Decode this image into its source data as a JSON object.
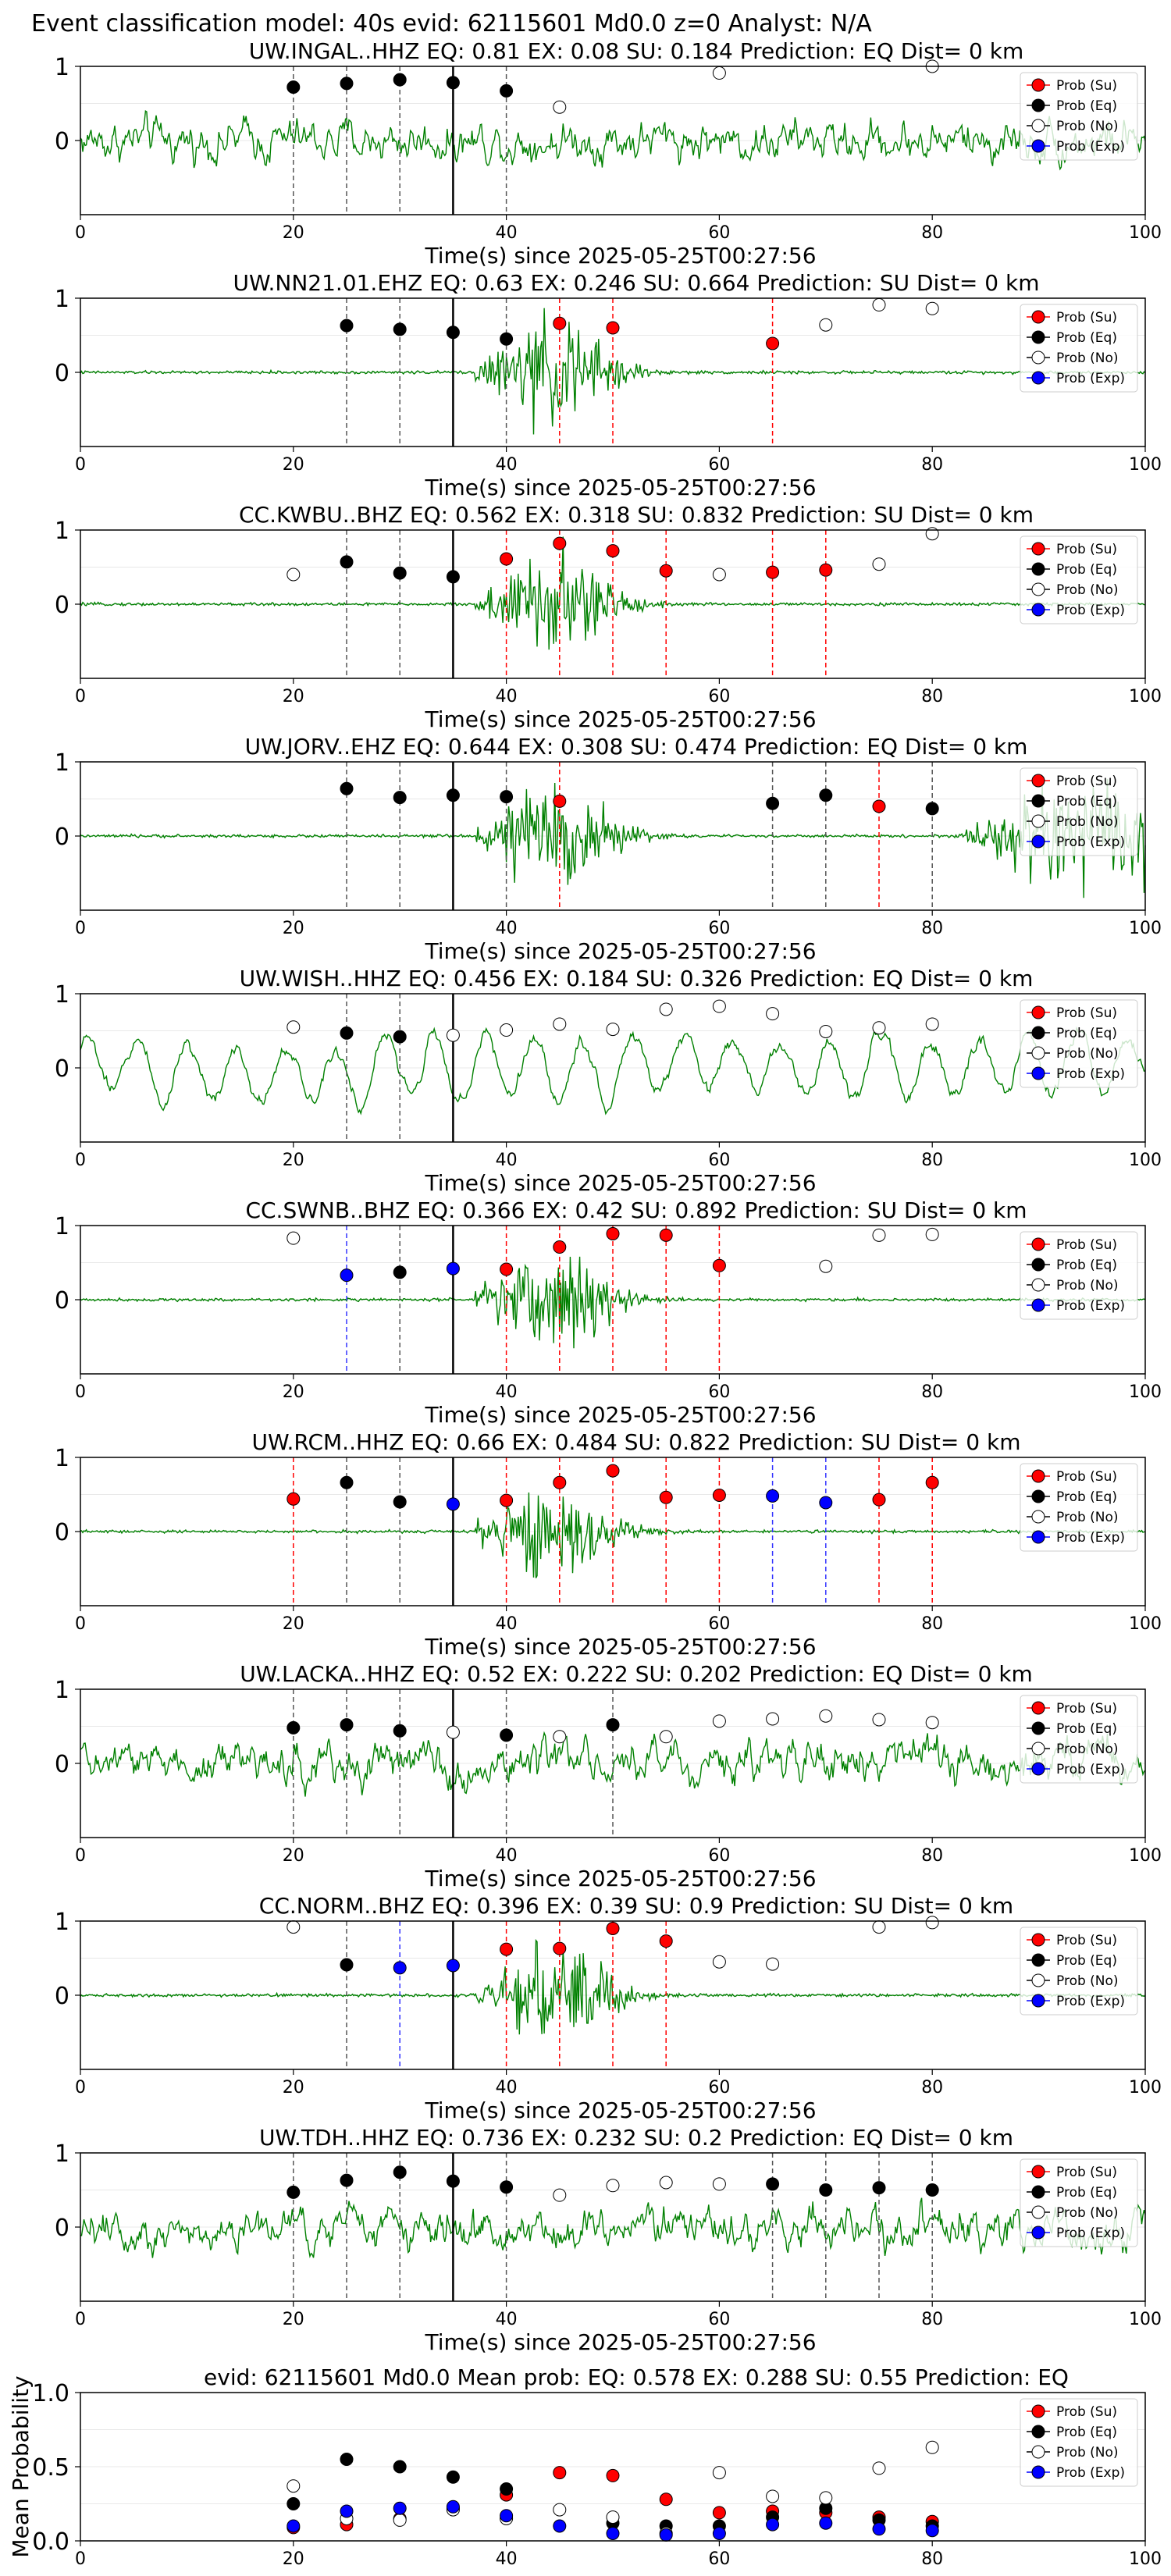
{
  "suptitle": "Event classification model: 40s evid: 62115601 Md0.0 z=0 Analyst: N/A",
  "legend_labels": [
    "Prob (Su)",
    "Prob (Eq)",
    "Prob (No)",
    "Prob (Exp)"
  ],
  "colors": {
    "su": "#ff0000",
    "eq": "#000000",
    "no": "#ffffff",
    "exp": "#0000ff",
    "trace": "#008000",
    "su_line": "#ff0000",
    "eq_line": "#555555",
    "exp_line": "#3333ff"
  },
  "chart_data": [
    {
      "type": "line",
      "title": "UW.INGAL..HHZ   EQ: 0.81  EX: 0.08  SU: 0.184   Prediction: EQ    Dist= 0 km",
      "xlabel": "Time(s) since 2025-05-25T00:27:56",
      "xlim": [
        0,
        100
      ],
      "ylim": [
        -1,
        1
      ],
      "xticks": [
        "0",
        "20",
        "40",
        "60",
        "80",
        "100"
      ],
      "yticks": [
        "1",
        "0"
      ],
      "trace_style": "noise",
      "event_line": 35,
      "points": [
        {
          "x": 20,
          "y": 0.72,
          "class": "eq"
        },
        {
          "x": 25,
          "y": 0.77,
          "class": "eq"
        },
        {
          "x": 30,
          "y": 0.82,
          "class": "eq"
        },
        {
          "x": 35,
          "y": 0.78,
          "class": "eq"
        },
        {
          "x": 40,
          "y": 0.67,
          "class": "eq"
        },
        {
          "x": 45,
          "y": 0.45,
          "class": "no"
        },
        {
          "x": 60,
          "y": 0.91,
          "class": "no"
        },
        {
          "x": 80,
          "y": 1.0,
          "class": "no"
        }
      ]
    },
    {
      "type": "line",
      "title": "UW.NN21.01.EHZ   EQ: 0.63  EX: 0.246  SU: 0.664   Prediction: SU    Dist= 0 km",
      "xlabel": "Time(s) since 2025-05-25T00:27:56",
      "xlim": [
        0,
        100
      ],
      "ylim": [
        -1,
        1
      ],
      "xticks": [
        "0",
        "20",
        "40",
        "60",
        "80",
        "100"
      ],
      "yticks": [
        "1",
        "0"
      ],
      "trace_style": "burst",
      "event_line": 35,
      "points": [
        {
          "x": 25,
          "y": 0.63,
          "class": "eq"
        },
        {
          "x": 30,
          "y": 0.58,
          "class": "eq"
        },
        {
          "x": 35,
          "y": 0.54,
          "class": "eq"
        },
        {
          "x": 40,
          "y": 0.45,
          "class": "eq"
        },
        {
          "x": 45,
          "y": 0.66,
          "class": "su"
        },
        {
          "x": 50,
          "y": 0.6,
          "class": "su"
        },
        {
          "x": 65,
          "y": 0.39,
          "class": "su"
        },
        {
          "x": 70,
          "y": 0.64,
          "class": "no"
        },
        {
          "x": 75,
          "y": 0.91,
          "class": "no"
        },
        {
          "x": 80,
          "y": 0.86,
          "class": "no"
        }
      ]
    },
    {
      "type": "line",
      "title": "CC.KWBU..BHZ   EQ: 0.562  EX: 0.318  SU: 0.832   Prediction: SU    Dist= 0 km",
      "xlabel": "Time(s) since 2025-05-25T00:27:56",
      "xlim": [
        0,
        100
      ],
      "ylim": [
        -1,
        1
      ],
      "xticks": [
        "0",
        "20",
        "40",
        "60",
        "80",
        "100"
      ],
      "yticks": [
        "1",
        "0"
      ],
      "trace_style": "burst",
      "event_line": 35,
      "points": [
        {
          "x": 20,
          "y": 0.4,
          "class": "no"
        },
        {
          "x": 25,
          "y": 0.57,
          "class": "eq"
        },
        {
          "x": 30,
          "y": 0.42,
          "class": "eq"
        },
        {
          "x": 35,
          "y": 0.37,
          "class": "eq"
        },
        {
          "x": 40,
          "y": 0.61,
          "class": "su"
        },
        {
          "x": 45,
          "y": 0.82,
          "class": "su"
        },
        {
          "x": 50,
          "y": 0.72,
          "class": "su"
        },
        {
          "x": 55,
          "y": 0.45,
          "class": "su"
        },
        {
          "x": 60,
          "y": 0.4,
          "class": "no"
        },
        {
          "x": 65,
          "y": 0.43,
          "class": "su"
        },
        {
          "x": 70,
          "y": 0.46,
          "class": "su"
        },
        {
          "x": 75,
          "y": 0.54,
          "class": "no"
        },
        {
          "x": 80,
          "y": 0.95,
          "class": "no"
        }
      ]
    },
    {
      "type": "line",
      "title": "UW.JORV..EHZ   EQ: 0.644  EX: 0.308  SU: 0.474   Prediction: EQ    Dist= 0 km",
      "xlabel": "Time(s) since 2025-05-25T00:27:56",
      "xlim": [
        0,
        100
      ],
      "ylim": [
        -1,
        1
      ],
      "xticks": [
        "0",
        "20",
        "40",
        "60",
        "80",
        "100"
      ],
      "yticks": [
        "1",
        "0"
      ],
      "trace_style": "burst_late",
      "event_line": 35,
      "points": [
        {
          "x": 25,
          "y": 0.64,
          "class": "eq"
        },
        {
          "x": 30,
          "y": 0.52,
          "class": "eq"
        },
        {
          "x": 35,
          "y": 0.55,
          "class": "eq"
        },
        {
          "x": 40,
          "y": 0.53,
          "class": "eq"
        },
        {
          "x": 45,
          "y": 0.47,
          "class": "su"
        },
        {
          "x": 65,
          "y": 0.44,
          "class": "eq"
        },
        {
          "x": 70,
          "y": 0.55,
          "class": "eq"
        },
        {
          "x": 75,
          "y": 0.4,
          "class": "su"
        },
        {
          "x": 80,
          "y": 0.37,
          "class": "eq"
        }
      ]
    },
    {
      "type": "line",
      "title": "UW.WISH..HHZ   EQ: 0.456  EX: 0.184  SU: 0.326   Prediction: EQ    Dist= 0 km",
      "xlabel": "Time(s) since 2025-05-25T00:27:56",
      "xlim": [
        0,
        100
      ],
      "ylim": [
        -1,
        1
      ],
      "xticks": [
        "0",
        "20",
        "40",
        "60",
        "80",
        "100"
      ],
      "yticks": [
        "1",
        "0"
      ],
      "trace_style": "waves",
      "event_line": 35,
      "points": [
        {
          "x": 20,
          "y": 0.55,
          "class": "no"
        },
        {
          "x": 25,
          "y": 0.47,
          "class": "eq"
        },
        {
          "x": 30,
          "y": 0.42,
          "class": "eq"
        },
        {
          "x": 35,
          "y": 0.44,
          "class": "no"
        },
        {
          "x": 40,
          "y": 0.51,
          "class": "no"
        },
        {
          "x": 45,
          "y": 0.59,
          "class": "no"
        },
        {
          "x": 50,
          "y": 0.52,
          "class": "no"
        },
        {
          "x": 55,
          "y": 0.79,
          "class": "no"
        },
        {
          "x": 60,
          "y": 0.83,
          "class": "no"
        },
        {
          "x": 65,
          "y": 0.73,
          "class": "no"
        },
        {
          "x": 70,
          "y": 0.49,
          "class": "no"
        },
        {
          "x": 75,
          "y": 0.54,
          "class": "no"
        },
        {
          "x": 80,
          "y": 0.59,
          "class": "no"
        }
      ]
    },
    {
      "type": "line",
      "title": "CC.SWNB..BHZ   EQ: 0.366  EX: 0.42  SU: 0.892   Prediction: SU    Dist= 0 km",
      "xlabel": "Time(s) since 2025-05-25T00:27:56",
      "xlim": [
        0,
        100
      ],
      "ylim": [
        -1,
        1
      ],
      "xticks": [
        "0",
        "20",
        "40",
        "60",
        "80",
        "100"
      ],
      "yticks": [
        "1",
        "0"
      ],
      "trace_style": "burst",
      "event_line": 35,
      "points": [
        {
          "x": 20,
          "y": 0.83,
          "class": "no"
        },
        {
          "x": 25,
          "y": 0.33,
          "class": "exp"
        },
        {
          "x": 30,
          "y": 0.37,
          "class": "eq"
        },
        {
          "x": 35,
          "y": 0.42,
          "class": "exp"
        },
        {
          "x": 40,
          "y": 0.41,
          "class": "su"
        },
        {
          "x": 45,
          "y": 0.71,
          "class": "su"
        },
        {
          "x": 50,
          "y": 0.89,
          "class": "su"
        },
        {
          "x": 55,
          "y": 0.87,
          "class": "su"
        },
        {
          "x": 60,
          "y": 0.46,
          "class": "su"
        },
        {
          "x": 70,
          "y": 0.45,
          "class": "no"
        },
        {
          "x": 75,
          "y": 0.87,
          "class": "no"
        },
        {
          "x": 80,
          "y": 0.88,
          "class": "no"
        }
      ]
    },
    {
      "type": "line",
      "title": "UW.RCM..HHZ   EQ: 0.66  EX: 0.484  SU: 0.822   Prediction: SU    Dist= 0 km",
      "xlabel": "Time(s) since 2025-05-25T00:27:56",
      "xlim": [
        0,
        100
      ],
      "ylim": [
        -1,
        1
      ],
      "xticks": [
        "0",
        "20",
        "40",
        "60",
        "80",
        "100"
      ],
      "yticks": [
        "1",
        "0"
      ],
      "trace_style": "burst",
      "event_line": 35,
      "points": [
        {
          "x": 20,
          "y": 0.44,
          "class": "su"
        },
        {
          "x": 25,
          "y": 0.66,
          "class": "eq"
        },
        {
          "x": 30,
          "y": 0.4,
          "class": "eq"
        },
        {
          "x": 35,
          "y": 0.37,
          "class": "exp"
        },
        {
          "x": 40,
          "y": 0.42,
          "class": "su"
        },
        {
          "x": 45,
          "y": 0.66,
          "class": "su"
        },
        {
          "x": 50,
          "y": 0.82,
          "class": "su"
        },
        {
          "x": 55,
          "y": 0.46,
          "class": "su"
        },
        {
          "x": 60,
          "y": 0.49,
          "class": "su"
        },
        {
          "x": 65,
          "y": 0.48,
          "class": "exp"
        },
        {
          "x": 70,
          "y": 0.39,
          "class": "exp"
        },
        {
          "x": 75,
          "y": 0.43,
          "class": "su"
        },
        {
          "x": 80,
          "y": 0.66,
          "class": "su"
        }
      ]
    },
    {
      "type": "line",
      "title": "UW.LACKA..HHZ   EQ: 0.52  EX: 0.222  SU: 0.202   Prediction: EQ    Dist= 0 km",
      "xlabel": "Time(s) since 2025-05-25T00:27:56",
      "xlim": [
        0,
        100
      ],
      "ylim": [
        -1,
        1
      ],
      "xticks": [
        "0",
        "20",
        "40",
        "60",
        "80",
        "100"
      ],
      "yticks": [
        "1",
        "0"
      ],
      "trace_style": "noise",
      "event_line": 35,
      "points": [
        {
          "x": 20,
          "y": 0.48,
          "class": "eq"
        },
        {
          "x": 25,
          "y": 0.52,
          "class": "eq"
        },
        {
          "x": 30,
          "y": 0.44,
          "class": "eq"
        },
        {
          "x": 35,
          "y": 0.42,
          "class": "no"
        },
        {
          "x": 40,
          "y": 0.38,
          "class": "eq"
        },
        {
          "x": 45,
          "y": 0.36,
          "class": "no"
        },
        {
          "x": 50,
          "y": 0.52,
          "class": "eq"
        },
        {
          "x": 55,
          "y": 0.36,
          "class": "no"
        },
        {
          "x": 60,
          "y": 0.57,
          "class": "no"
        },
        {
          "x": 65,
          "y": 0.6,
          "class": "no"
        },
        {
          "x": 70,
          "y": 0.64,
          "class": "no"
        },
        {
          "x": 75,
          "y": 0.59,
          "class": "no"
        },
        {
          "x": 80,
          "y": 0.55,
          "class": "no"
        }
      ]
    },
    {
      "type": "line",
      "title": "CC.NORM..BHZ   EQ: 0.396  EX: 0.39  SU: 0.9   Prediction: SU    Dist= 0 km",
      "xlabel": "Time(s) since 2025-05-25T00:27:56",
      "xlim": [
        0,
        100
      ],
      "ylim": [
        -1,
        1
      ],
      "xticks": [
        "0",
        "20",
        "40",
        "60",
        "80",
        "100"
      ],
      "yticks": [
        "1",
        "0"
      ],
      "trace_style": "burst",
      "event_line": 35,
      "points": [
        {
          "x": 20,
          "y": 0.92,
          "class": "no"
        },
        {
          "x": 25,
          "y": 0.41,
          "class": "eq"
        },
        {
          "x": 30,
          "y": 0.37,
          "class": "exp"
        },
        {
          "x": 35,
          "y": 0.4,
          "class": "exp"
        },
        {
          "x": 40,
          "y": 0.62,
          "class": "su"
        },
        {
          "x": 45,
          "y": 0.63,
          "class": "su"
        },
        {
          "x": 50,
          "y": 0.9,
          "class": "su"
        },
        {
          "x": 55,
          "y": 0.73,
          "class": "su"
        },
        {
          "x": 60,
          "y": 0.45,
          "class": "no"
        },
        {
          "x": 65,
          "y": 0.42,
          "class": "no"
        },
        {
          "x": 75,
          "y": 0.92,
          "class": "no"
        },
        {
          "x": 80,
          "y": 0.98,
          "class": "no"
        }
      ]
    },
    {
      "type": "line",
      "title": "UW.TDH..HHZ   EQ: 0.736  EX: 0.232  SU: 0.2   Prediction: EQ    Dist= 0 km",
      "xlabel": "Time(s) since 2025-05-25T00:27:56",
      "xlim": [
        0,
        100
      ],
      "ylim": [
        -1,
        1
      ],
      "xticks": [
        "0",
        "20",
        "40",
        "60",
        "80",
        "100"
      ],
      "yticks": [
        "1",
        "0"
      ],
      "trace_style": "noise",
      "event_line": 35,
      "points": [
        {
          "x": 20,
          "y": 0.47,
          "class": "eq"
        },
        {
          "x": 25,
          "y": 0.63,
          "class": "eq"
        },
        {
          "x": 30,
          "y": 0.74,
          "class": "eq"
        },
        {
          "x": 35,
          "y": 0.62,
          "class": "eq"
        },
        {
          "x": 40,
          "y": 0.54,
          "class": "eq"
        },
        {
          "x": 45,
          "y": 0.43,
          "class": "no"
        },
        {
          "x": 50,
          "y": 0.56,
          "class": "no"
        },
        {
          "x": 55,
          "y": 0.6,
          "class": "no"
        },
        {
          "x": 60,
          "y": 0.58,
          "class": "no"
        },
        {
          "x": 65,
          "y": 0.58,
          "class": "eq"
        },
        {
          "x": 70,
          "y": 0.5,
          "class": "eq"
        },
        {
          "x": 75,
          "y": 0.53,
          "class": "eq"
        },
        {
          "x": 80,
          "y": 0.5,
          "class": "eq"
        }
      ]
    },
    {
      "type": "scatter",
      "title": "evid: 62115601  Md0.0   Mean prob:    EQ: 0.578  EX: 0.288  SU: 0.55   Prediction: EQ",
      "ylabel": "Mean Probability",
      "xlim": [
        0,
        100
      ],
      "ylim": [
        0,
        1
      ],
      "xticks": [
        "0",
        "20",
        "40",
        "60",
        "80",
        "100"
      ],
      "yticks": [
        "1.0",
        "0.5",
        "0.0"
      ],
      "series": [
        {
          "name": "Prob (Su)",
          "class": "su",
          "x": [
            20,
            25,
            30,
            35,
            40,
            45,
            50,
            55,
            60,
            65,
            70,
            75,
            80
          ],
          "values": [
            0.09,
            0.11,
            0.15,
            0.22,
            0.31,
            0.46,
            0.44,
            0.28,
            0.19,
            0.2,
            0.19,
            0.16,
            0.13
          ]
        },
        {
          "name": "Prob (Eq)",
          "class": "eq",
          "x": [
            20,
            25,
            30,
            35,
            40,
            45,
            50,
            55,
            60,
            65,
            70,
            75,
            80
          ],
          "values": [
            0.25,
            0.55,
            0.5,
            0.43,
            0.35,
            null,
            0.12,
            0.1,
            0.1,
            0.16,
            0.22,
            0.14,
            0.1
          ]
        },
        {
          "name": "Prob (No)",
          "class": "no",
          "x": [
            20,
            25,
            30,
            35,
            40,
            45,
            50,
            55,
            60,
            65,
            70,
            75,
            80
          ],
          "values": [
            0.37,
            0.15,
            0.14,
            0.21,
            0.15,
            0.21,
            0.16,
            0.05,
            0.46,
            0.3,
            0.29,
            0.49,
            0.63
          ]
        },
        {
          "name": "Prob (Exp)",
          "class": "exp",
          "x": [
            20,
            25,
            30,
            35,
            40,
            45,
            50,
            55,
            60,
            65,
            70,
            75,
            80
          ],
          "values": [
            0.1,
            0.2,
            0.22,
            0.23,
            0.17,
            0.1,
            0.05,
            0.04,
            0.05,
            0.11,
            0.12,
            0.08,
            0.07
          ]
        }
      ]
    }
  ]
}
